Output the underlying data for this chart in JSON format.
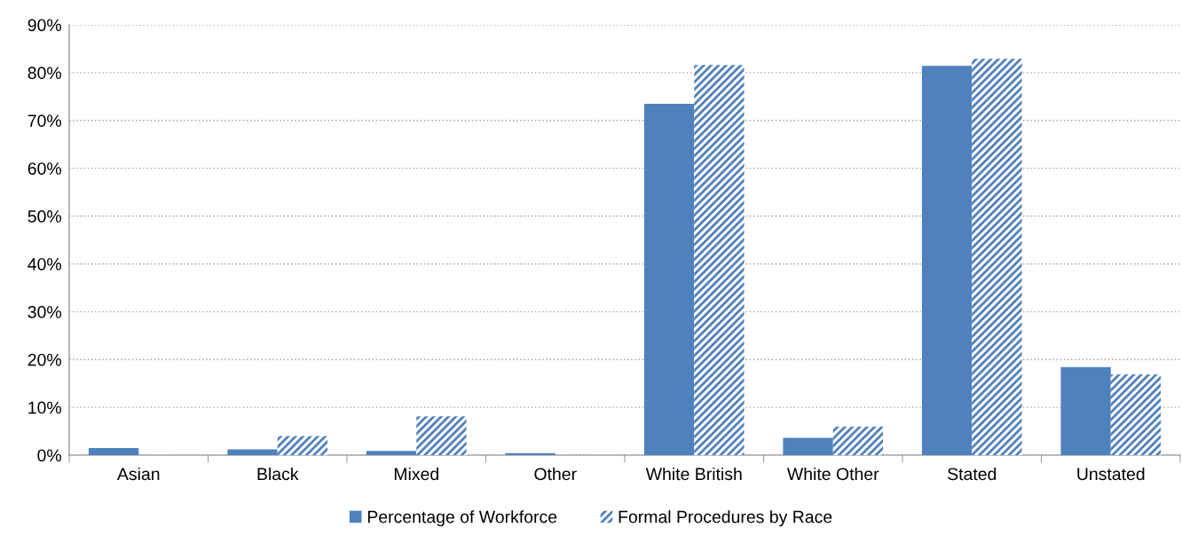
{
  "chart_data": {
    "type": "bar",
    "categories": [
      "Asian",
      "Black",
      "Mixed",
      "Other",
      "White British",
      "White Other",
      "Stated",
      "Unstated"
    ],
    "series": [
      {
        "name": "Percentage of Workforce",
        "color": "#4f81bd",
        "values": [
          1.5,
          1.2,
          0.9,
          0.4,
          73.5,
          3.6,
          81.4,
          18.4
        ]
      },
      {
        "name": "Formal Procedures by Race",
        "color": "#4f81bd",
        "values": [
          0,
          4.0,
          8.1,
          0,
          81.6,
          6.0,
          82.9,
          16.9
        ]
      }
    ],
    "ylim": [
      0,
      90
    ],
    "yticks": [
      {
        "value": 0,
        "label": "0%"
      },
      {
        "value": 10,
        "label": "10%"
      },
      {
        "value": 20,
        "label": "20%"
      },
      {
        "value": 30,
        "label": "30%"
      },
      {
        "value": 40,
        "label": "40%"
      },
      {
        "value": 50,
        "label": "50%"
      },
      {
        "value": 60,
        "label": "60%"
      },
      {
        "value": 70,
        "label": "70%"
      },
      {
        "value": 80,
        "label": "80%"
      },
      {
        "value": 90,
        "label": "90%"
      }
    ],
    "grid": "y",
    "legend": "bottom"
  }
}
